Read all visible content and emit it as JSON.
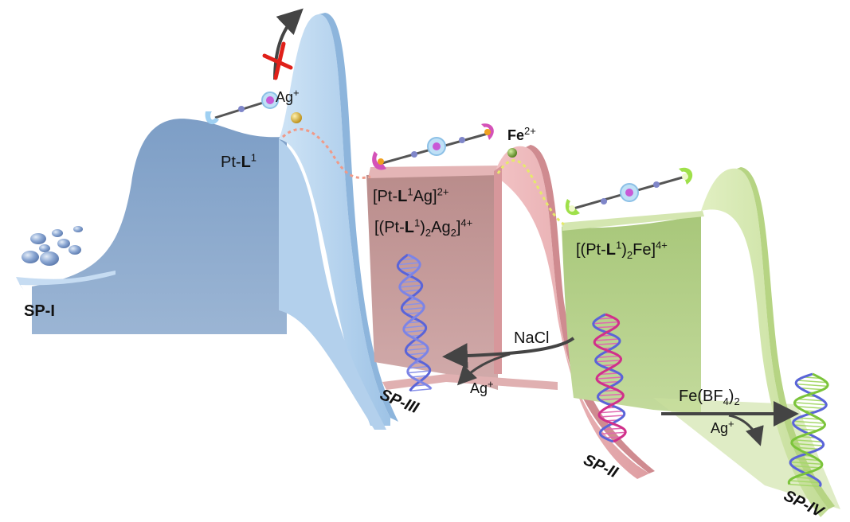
{
  "colors": {
    "panel1": "#8aa7c9",
    "wall1": "#b7d4ee",
    "panel2": "#c89b99",
    "wall2": "#e6a9ad",
    "panel3": "#b5d08a",
    "wall3": "#cde3a4",
    "ag": "#d4a81a",
    "fe": "#6f9e2a",
    "ag_path": "#f09a88",
    "fe_path": "#e6ea6a",
    "cross": "#e0201a",
    "arrow": "#444444"
  },
  "labels": {
    "pt_l1_prefix": "Pt-",
    "l1_bold": "L",
    "one_sup": "1",
    "ag_plus": "Ag",
    "plus": "+",
    "fe2_base": "Fe",
    "fe2_sup": "2+",
    "ptl1ag_pre": "[Pt-",
    "ptl1ag_mid": "Ag]",
    "sup_2plus": "2+",
    "ptl12ag2_pre": "[(Pt-",
    "ptl12ag2_mid": ")",
    "sub_2": "2",
    "ptl12ag2_ag": "Ag",
    "ptl12ag2_end": "]",
    "sup_4plus": "4+",
    "ptl12fe_fe": "Fe]",
    "nacl": "NaCl",
    "ag_release_1": "Ag",
    "fe_bf4_pre": "Fe(BF",
    "sub_4": "4",
    "fe_bf4_mid": ")",
    "ag_release_2": "Ag",
    "sp_prefix": "SP-",
    "sp_i": "I",
    "sp_ii": "II",
    "sp_iii": "III",
    "sp_iv": "IV"
  }
}
